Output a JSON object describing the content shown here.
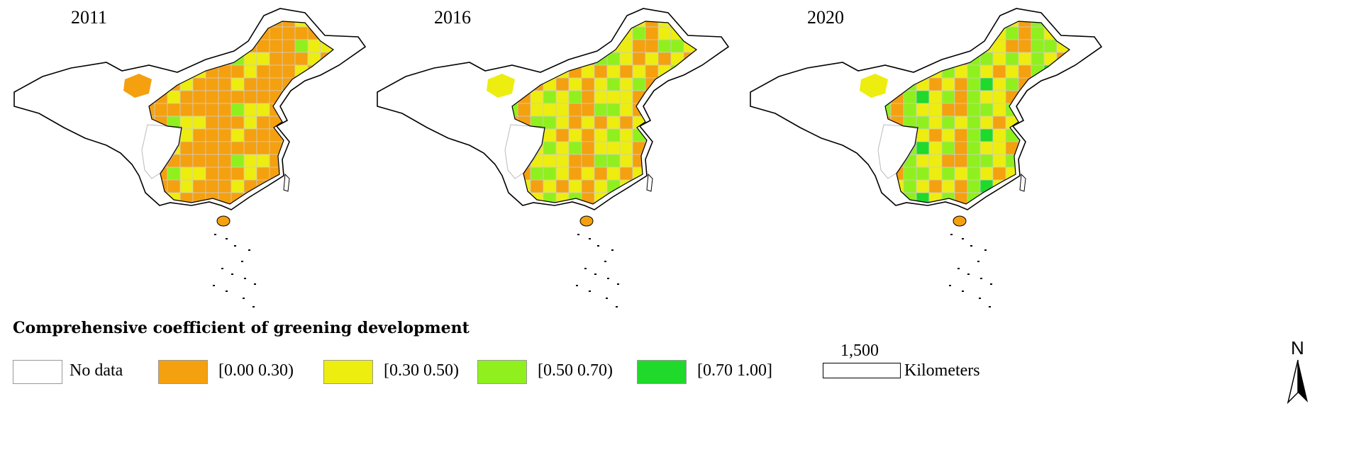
{
  "maps": [
    {
      "year": "2011",
      "colors": [
        "#f5a00f",
        "#f5a00f",
        "#f5a00f",
        "#f5a00f",
        "#eded10",
        "#f5a00f",
        "#f5a00f",
        "#eded10",
        "#f5a00f",
        "#f5a00f",
        "#f5a00f",
        "#eded10",
        "#f5a00f",
        "#f5a00f",
        "#f5a00f",
        "#f5a00f",
        "#f5a00f",
        "#8ff01e",
        "#f5a00f",
        "#eded10"
      ]
    },
    {
      "year": "2016",
      "colors": [
        "#f5a00f",
        "#eded10",
        "#eded10",
        "#f5a00f",
        "#8ff01e",
        "#eded10",
        "#f5a00f",
        "#eded10",
        "#8ff01e",
        "#eded10",
        "#f5a00f",
        "#eded10",
        "#f5a00f",
        "#eded10",
        "#8ff01e",
        "#f5a00f",
        "#eded10",
        "#8ff01e",
        "#f5a00f",
        "#eded10"
      ]
    },
    {
      "year": "2020",
      "colors": [
        "#f5a00f",
        "#eded10",
        "#8ff01e",
        "#f5a00f",
        "#8ff01e",
        "#eded10",
        "#f5a00f",
        "#8ff01e",
        "#8ff01e",
        "#eded10",
        "#f5a00f",
        "#eded10",
        "#8ff01e",
        "#eded10",
        "#1fd92b",
        "#f5a00f",
        "#eded10",
        "#8ff01e",
        "#8ff01e",
        "#eded10"
      ]
    }
  ],
  "legend": {
    "title": "Comprehensive coefficient of greening development",
    "items": [
      {
        "label": "No data",
        "color": "#ffffff"
      },
      {
        "label": "[0.00  0.30)",
        "color": "#f5a00f"
      },
      {
        "label": "[0.30  0.50)",
        "color": "#eded10"
      },
      {
        "label": "[0.50  0.70)",
        "color": "#8ff01e"
      },
      {
        "label": "[0.70  1.00]",
        "color": "#1fd92b"
      }
    ]
  },
  "scale_bar": {
    "value": "1,500",
    "unit": "Kilometers"
  },
  "north_arrow": {
    "label": "N"
  }
}
